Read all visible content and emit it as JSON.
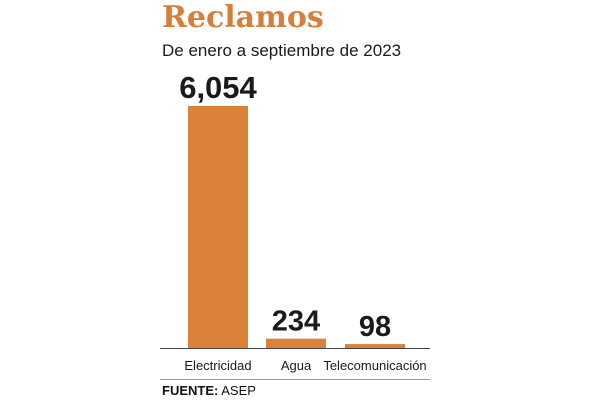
{
  "title": "Reclamos",
  "subtitle": "De enero a septiembre de 2023",
  "source": {
    "label": "FUENTE:",
    "value": "ASEP"
  },
  "colors": {
    "accent": "#d77f3a",
    "bar": "#da8238",
    "text": "#1a1a1a"
  },
  "chart_data": {
    "type": "bar",
    "categories": [
      "Electricidad",
      "Agua",
      "Telecomunicación"
    ],
    "values": [
      6054,
      234,
      98
    ],
    "value_labels": [
      "6,054",
      "234",
      "98"
    ],
    "title": "Reclamos",
    "subtitle": "De enero a septiembre de 2023",
    "xlabel": "",
    "ylabel": "",
    "ylim": [
      0,
      6054
    ],
    "grid": false,
    "legend": "none"
  }
}
